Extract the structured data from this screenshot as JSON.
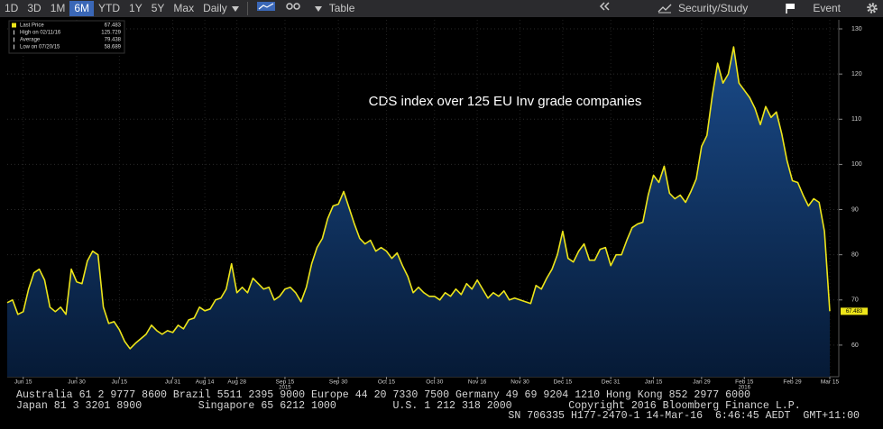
{
  "toolbar": {
    "ranges": [
      "1D",
      "3D",
      "1M",
      "6M",
      "YTD",
      "1Y",
      "5Y",
      "Max"
    ],
    "active_range": "6M",
    "interval": "Daily",
    "table": "Table",
    "study": "Security/Study",
    "event": "Event"
  },
  "chart_data": {
    "type": "line",
    "annotation": "CDS index over 125 EU Inv grade companies",
    "categories": [
      null,
      null,
      null,
      "Jun 15",
      null,
      null,
      null,
      null,
      null,
      null,
      null,
      null,
      null,
      "Jun 30",
      null,
      null,
      null,
      null,
      null,
      null,
      null,
      "Jul 15",
      null,
      null,
      null,
      null,
      null,
      null,
      null,
      null,
      null,
      "Jul 31",
      null,
      null,
      null,
      null,
      null,
      "Aug 14",
      null,
      null,
      null,
      null,
      null,
      "Aug 28",
      null,
      null,
      null,
      null,
      null,
      null,
      null,
      null,
      "Sep 15",
      null,
      null,
      null,
      null,
      null,
      null,
      null,
      null,
      null,
      "Sep 30",
      null,
      null,
      null,
      null,
      null,
      null,
      null,
      null,
      "Oct 15",
      null,
      null,
      null,
      null,
      null,
      null,
      null,
      null,
      "Oct 30",
      null,
      null,
      null,
      null,
      null,
      null,
      null,
      "Nov 16",
      null,
      null,
      null,
      null,
      null,
      null,
      null,
      "Nov 30",
      null,
      null,
      null,
      null,
      null,
      null,
      null,
      "Dec 15",
      null,
      null,
      null,
      null,
      null,
      null,
      null,
      null,
      "Dec 31",
      null,
      null,
      null,
      null,
      null,
      null,
      null,
      "Jan 15",
      null,
      null,
      null,
      null,
      null,
      null,
      null,
      null,
      "Jan 29",
      null,
      null,
      null,
      null,
      null,
      null,
      null,
      "Feb 15",
      null,
      null,
      null,
      null,
      null,
      null,
      null,
      null,
      "Feb 29",
      null,
      null,
      null,
      null,
      null,
      null,
      "Mar 15"
    ],
    "year_labels": [
      {
        "text": "2015",
        "category": "Sep 15"
      },
      {
        "text": "2016",
        "category": "Feb 15"
      }
    ],
    "series": [
      {
        "name": "Last Price",
        "color": "#ede51a",
        "values": [
          69.4,
          70,
          66.8,
          67.4,
          72.4,
          76,
          76.8,
          74.4,
          68.4,
          67.4,
          68.4,
          66.8,
          76.8,
          74,
          73.6,
          78.6,
          80.8,
          80,
          68.4,
          64.8,
          65.2,
          63.4,
          60.8,
          59.2,
          60.4,
          61.4,
          62.4,
          64.4,
          63.2,
          62.4,
          63.2,
          62.8,
          64.4,
          63.6,
          65.6,
          66,
          68.4,
          67.6,
          68,
          70,
          70.4,
          72.4,
          78,
          71.6,
          72.8,
          71.6,
          74.8,
          73.6,
          72.4,
          72.8,
          70,
          70.8,
          72.4,
          72.8,
          71.6,
          69.6,
          72.8,
          78,
          81.6,
          83.6,
          88,
          90.8,
          91.2,
          94,
          90.4,
          86.8,
          83.6,
          82.4,
          83.2,
          80.8,
          81.6,
          80.8,
          79.2,
          80.4,
          77.6,
          75.2,
          71.6,
          72.8,
          71.6,
          70.8,
          70.8,
          70,
          71.6,
          70.8,
          72.4,
          71.2,
          73.6,
          72.4,
          74.4,
          72.4,
          70.4,
          71.6,
          70.8,
          72,
          70,
          70.4,
          70,
          69.6,
          69.2,
          73.2,
          72.4,
          74.8,
          76.8,
          80,
          85.2,
          79.2,
          78.4,
          80.8,
          82.4,
          78.8,
          78.8,
          81.2,
          81.6,
          77.6,
          80,
          80,
          83.2,
          86,
          86.8,
          87.2,
          93.2,
          97.6,
          96,
          99.6,
          93.6,
          92.4,
          93.2,
          91.6,
          94,
          96.8,
          104,
          106.4,
          115.2,
          122.4,
          118,
          120,
          126,
          118,
          116.4,
          114.8,
          112.4,
          108.8,
          112.8,
          110.4,
          111.6,
          106.8,
          100.8,
          96.4,
          96,
          93.2,
          90.8,
          92.4,
          91.6,
          85.2,
          67.5
        ]
      }
    ],
    "last_price": 67.483,
    "legend_stats": [
      {
        "label": "High on 02/11/16",
        "value": 125.729
      },
      {
        "label": "Average",
        "value": 79.438
      },
      {
        "label": "Low on 07/20/15",
        "value": 58.689
      }
    ],
    "ylim": [
      53,
      132
    ],
    "yticks": [
      60,
      70,
      80,
      90,
      100,
      110,
      120,
      130
    ],
    "grid": true,
    "axis_side": "right"
  },
  "footer": {
    "lines": [
      "Australia 61 2 9777 8600 Brazil 5511 2395 9000 Europe 44 20 7330 7500 Germany 49 69 9204 1210 Hong Kong 852 2977 6000",
      "Japan 81 3 3201 8900         Singapore 65 6212 1000         U.S. 1 212 318 2000         Copyright 2016 Bloomberg Finance L.P.",
      "SN 706335 H177-2470-1 14-Mar-16  6:46:45 AEDT  GMT+11:00"
    ]
  }
}
